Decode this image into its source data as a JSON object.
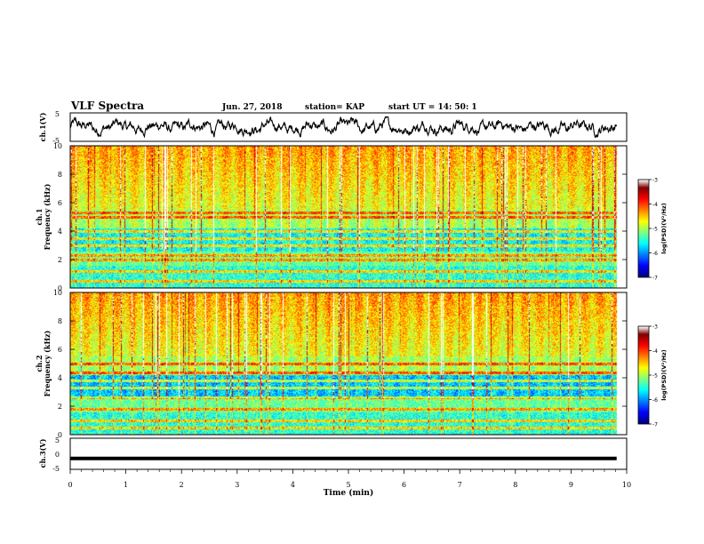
{
  "header": {
    "title": "VLF Spectra",
    "date": "Jun. 27, 2018",
    "station": "station= KAP",
    "start": "start  UT =   14: 50: 1"
  },
  "chart_data": [
    {
      "type": "line",
      "name": "ch1-waveform",
      "ylabel": "ch.1(V)",
      "ylim": [
        -5,
        5
      ],
      "yticks": [
        "5",
        "-5"
      ],
      "xlim": [
        0,
        10
      ],
      "x_end": 9.82,
      "noise_amplitude": 1.6
    },
    {
      "type": "heatmap",
      "name": "ch1-spectrogram",
      "ylabel": "ch.1",
      "ylabel2": "Frequency (kHz)",
      "ylim": [
        0,
        10
      ],
      "yticks": [
        "0",
        "2",
        "4",
        "6",
        "8",
        "10"
      ],
      "xlim": [
        0,
        10
      ],
      "x_end": 9.82,
      "bands_khz": [
        0.5,
        1.2,
        2.0,
        2.3,
        3.0,
        3.5,
        4.0,
        5.0,
        5.3
      ],
      "colorbar": {
        "label": "log(PSD)(V²/Hz)",
        "range": [
          -7,
          -3
        ],
        "ticks": [
          "-3",
          "-4",
          "-5",
          "-6",
          "-7"
        ]
      }
    },
    {
      "type": "heatmap",
      "name": "ch2-spectrogram",
      "ylabel": "ch.2",
      "ylabel2": "Frequency (kHz)",
      "ylim": [
        0,
        10
      ],
      "yticks": [
        "0",
        "2",
        "4",
        "6",
        "8",
        "10"
      ],
      "xlim": [
        0,
        10
      ],
      "x_end": 9.82,
      "bands_khz": [
        0.5,
        1.0,
        1.8,
        2.6,
        3.3,
        3.8,
        4.4,
        5.0
      ],
      "colorbar": {
        "label": "log(PSD)(V²/Hz)",
        "range": [
          -7,
          -3
        ],
        "ticks": [
          "-3",
          "-4",
          "-5",
          "-6",
          "-7"
        ]
      }
    },
    {
      "type": "line",
      "name": "ch3-waveform",
      "ylabel": "ch.3(V)",
      "ylim": [
        -5,
        5
      ],
      "yticks": [
        "5",
        "0",
        "-5"
      ],
      "xlim": [
        0,
        10
      ],
      "x_end": 9.82,
      "level": -1.5,
      "xlabel": "Time (min)",
      "xticks": [
        "0",
        "1",
        "2",
        "3",
        "4",
        "5",
        "6",
        "7",
        "8",
        "9",
        "10"
      ]
    }
  ]
}
